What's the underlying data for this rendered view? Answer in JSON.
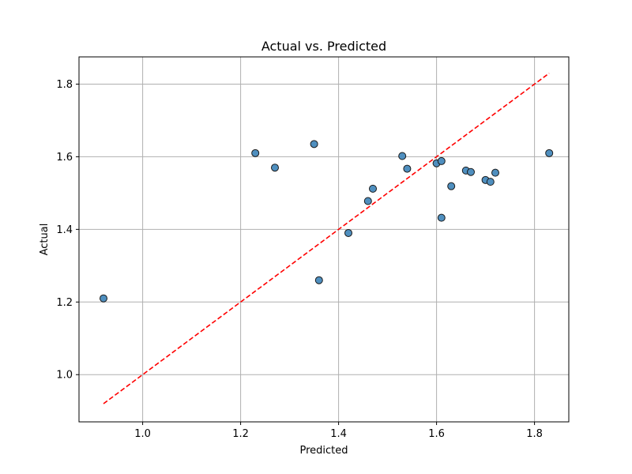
{
  "chart_data": {
    "type": "scatter",
    "title": "Actual vs. Predicted",
    "xlabel": "Predicted",
    "ylabel": "Actual",
    "xlim": [
      0.87,
      1.87
    ],
    "ylim": [
      0.87,
      1.875
    ],
    "xticks": [
      1.0,
      1.2,
      1.4,
      1.6,
      1.8
    ],
    "yticks": [
      1.0,
      1.2,
      1.4,
      1.6,
      1.8
    ],
    "xtick_labels": [
      "1.0",
      "1.2",
      "1.4",
      "1.6",
      "1.8"
    ],
    "ytick_labels": [
      "1.0",
      "1.2",
      "1.4",
      "1.6",
      "1.8"
    ],
    "grid": true,
    "series": [
      {
        "marker_color": "#4f8fbf",
        "edge_color": "#1a1a1a",
        "points": [
          {
            "x": 0.92,
            "y": 1.21
          },
          {
            "x": 1.23,
            "y": 1.61
          },
          {
            "x": 1.27,
            "y": 1.57
          },
          {
            "x": 1.35,
            "y": 1.635
          },
          {
            "x": 1.36,
            "y": 1.26
          },
          {
            "x": 1.42,
            "y": 1.39
          },
          {
            "x": 1.46,
            "y": 1.478
          },
          {
            "x": 1.47,
            "y": 1.512
          },
          {
            "x": 1.53,
            "y": 1.602
          },
          {
            "x": 1.54,
            "y": 1.567
          },
          {
            "x": 1.6,
            "y": 1.582
          },
          {
            "x": 1.61,
            "y": 1.588
          },
          {
            "x": 1.61,
            "y": 1.432
          },
          {
            "x": 1.63,
            "y": 1.519
          },
          {
            "x": 1.66,
            "y": 1.562
          },
          {
            "x": 1.67,
            "y": 1.558
          },
          {
            "x": 1.7,
            "y": 1.536
          },
          {
            "x": 1.71,
            "y": 1.531
          },
          {
            "x": 1.72,
            "y": 1.556
          },
          {
            "x": 1.83,
            "y": 1.61
          }
        ]
      }
    ],
    "reference_line": {
      "style": "dashed",
      "color": "#ff0000",
      "from": [
        0.92,
        0.92
      ],
      "to": [
        1.83,
        1.83
      ]
    }
  }
}
